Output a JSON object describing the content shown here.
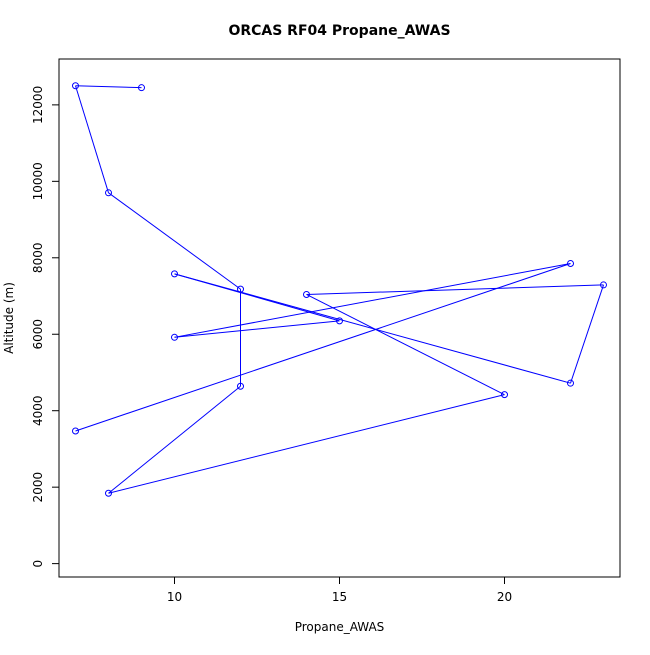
{
  "chart_data": {
    "type": "line",
    "title": "ORCAS RF04 Propane_AWAS",
    "xlabel": "Propane_AWAS",
    "ylabel": "Altitude (m)",
    "xlim": [
      6.5,
      23.5
    ],
    "ylim": [
      -350,
      13200
    ],
    "x_ticks": [
      10,
      15,
      20
    ],
    "y_ticks": [
      0,
      2000,
      4000,
      6000,
      8000,
      10000,
      12000
    ],
    "x_tick_labels": [
      "10",
      "15",
      "20"
    ],
    "y_tick_labels": [
      "0",
      "2000",
      "4000",
      "6000",
      "8000",
      "10000",
      "12000"
    ],
    "grid": false,
    "series": [
      {
        "color": "#0000ff",
        "marker": "open-circle",
        "points": [
          {
            "x": 9,
            "y": 12450
          },
          {
            "x": 7,
            "y": 12500
          },
          {
            "x": 8,
            "y": 9700
          },
          {
            "x": 12,
            "y": 7180
          },
          {
            "x": 12,
            "y": 4640
          },
          {
            "x": 8,
            "y": 1840
          },
          {
            "x": 20,
            "y": 4420
          },
          {
            "x": 14,
            "y": 7040
          },
          {
            "x": 23,
            "y": 7290
          },
          {
            "x": 22,
            "y": 4720
          },
          {
            "x": 10,
            "y": 7580
          },
          {
            "x": 15,
            "y": 6350
          },
          {
            "x": 10,
            "y": 5920
          },
          {
            "x": 22,
            "y": 7850
          },
          {
            "x": 7,
            "y": 3470
          }
        ]
      }
    ]
  }
}
